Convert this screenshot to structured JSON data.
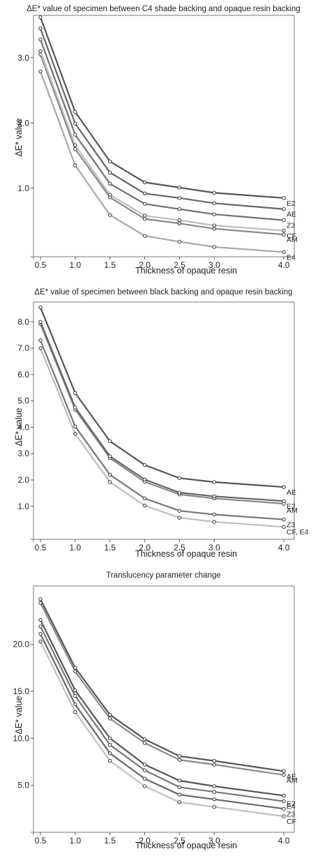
{
  "chart_data": [
    {
      "type": "line",
      "title": "ΔE* value of specimen between C4 shade backing and opaque resin backing",
      "xlabel": "Thickness of opaque resin",
      "ylabel": "ΔE* value",
      "x": [
        0.5,
        1.0,
        1.5,
        2.0,
        2.5,
        3.0,
        4.0
      ],
      "x_ticks": [
        "0.5",
        "1.0",
        "1.5",
        "2.0",
        "2.5",
        "3.0",
        "4.0"
      ],
      "xlim": [
        0.4,
        4.15
      ],
      "ylim": [
        -0.05,
        3.65
      ],
      "y_ticks": [
        1.0,
        2.0,
        3.0
      ],
      "y_tick_labels": [
        "1.0",
        "2.0",
        "3.0"
      ],
      "grid": false,
      "series": [
        {
          "name": "E2",
          "color": "#555555",
          "values": [
            3.62,
            2.17,
            1.41,
            1.09,
            1.01,
            0.93,
            0.85
          ]
        },
        {
          "name": "AE",
          "color": "#666666",
          "values": [
            3.45,
            1.99,
            1.24,
            0.92,
            0.85,
            0.77,
            0.68
          ]
        },
        {
          "name": "Z3",
          "color": "#707070",
          "values": [
            3.28,
            1.82,
            1.07,
            0.76,
            0.68,
            0.6,
            0.51
          ]
        },
        {
          "name": "CF",
          "color": "#bdbdbd",
          "values": [
            3.1,
            1.66,
            0.9,
            0.58,
            0.51,
            0.43,
            0.35
          ]
        },
        {
          "name": "AM",
          "color": "#888888",
          "values": [
            3.05,
            1.6,
            0.86,
            0.53,
            0.46,
            0.38,
            0.29
          ]
        },
        {
          "name": "E4",
          "color": "#a8a8a8",
          "values": [
            2.79,
            1.35,
            0.59,
            0.27,
            0.18,
            0.1,
            0.02
          ]
        }
      ]
    },
    {
      "type": "line",
      "title": "ΔE* value of specimen between black backing and opaque resin backing",
      "xlabel": "Thickness of opaque resin",
      "ylabel": "ΔE* value",
      "x": [
        0.5,
        1.0,
        1.5,
        2.0,
        2.5,
        3.0,
        4.0
      ],
      "x_ticks": [
        "0.5",
        "1.0",
        "1.5",
        "2.0",
        "2.5",
        "3.0",
        "4.0"
      ],
      "xlim": [
        0.4,
        4.15
      ],
      "ylim": [
        -0.25,
        8.75
      ],
      "y_ticks": [
        1.0,
        2.0,
        3.0,
        4.0,
        5.0,
        6.0,
        7.0,
        8.0
      ],
      "y_tick_labels": [
        "1.0",
        "2.0",
        "3.0",
        "4.0",
        "5.0",
        "6.0",
        "7.0",
        "8.0"
      ],
      "grid": false,
      "series": [
        {
          "name": "AE",
          "color": "#555555",
          "values": [
            8.55,
            5.3,
            3.47,
            2.57,
            2.07,
            1.92,
            1.73
          ]
        },
        {
          "name": "E2",
          "color": "#666666",
          "values": [
            8.0,
            4.75,
            2.9,
            2.02,
            1.52,
            1.38,
            1.2
          ]
        },
        {
          "name": "AM",
          "color": "#888888",
          "values": [
            7.92,
            4.67,
            2.83,
            1.93,
            1.45,
            1.3,
            1.1
          ]
        },
        {
          "name": "Z3",
          "color": "#777777",
          "values": [
            7.3,
            4.03,
            2.2,
            1.3,
            0.83,
            0.69,
            0.5
          ]
        },
        {
          "name": "CF, E4",
          "color": "#bdbdbd",
          "values": [
            7.0,
            3.75,
            1.92,
            1.03,
            0.57,
            0.41,
            0.22
          ]
        }
      ]
    },
    {
      "type": "line",
      "title": "Translucency parameter change",
      "xlabel": "Thickness of opaque resin",
      "ylabel": "ΔE* value",
      "x": [
        0.5,
        1.0,
        1.5,
        2.0,
        2.5,
        3.0,
        4.0
      ],
      "x_ticks": [
        "0.5",
        "1.0",
        "1.5",
        "2.0",
        "2.5",
        "3.0",
        "4.0"
      ],
      "xlim": [
        0.4,
        4.15
      ],
      "ylim": [
        0,
        26.2
      ],
      "y_ticks": [
        5.0,
        10.0,
        15.0,
        20.0
      ],
      "y_tick_labels": [
        "5.0",
        "10.0",
        "15.0",
        "20.0"
      ],
      "grid": false,
      "series": [
        {
          "name": "AE",
          "color": "#555555",
          "values": [
            24.8,
            17.5,
            12.5,
            9.9,
            8.1,
            7.6,
            6.5
          ]
        },
        {
          "name": "AM",
          "color": "#8a8a8a",
          "values": [
            24.4,
            17.1,
            12.1,
            9.5,
            7.7,
            7.2,
            6.1
          ]
        },
        {
          "name": "E2",
          "color": "#555555",
          "values": [
            22.6,
            15.1,
            10.0,
            7.2,
            5.5,
            4.9,
            3.9
          ]
        },
        {
          "name": "E4",
          "color": "#777777",
          "values": [
            21.9,
            14.5,
            9.3,
            6.6,
            4.8,
            4.3,
            3.3
          ]
        },
        {
          "name": "Z3",
          "color": "#666666",
          "values": [
            21.1,
            13.6,
            8.4,
            5.7,
            4.0,
            3.5,
            2.5
          ]
        },
        {
          "name": "CF",
          "color": "#c0c0c0",
          "values": [
            20.3,
            12.8,
            7.6,
            4.9,
            3.2,
            2.7,
            1.7
          ]
        }
      ]
    }
  ]
}
